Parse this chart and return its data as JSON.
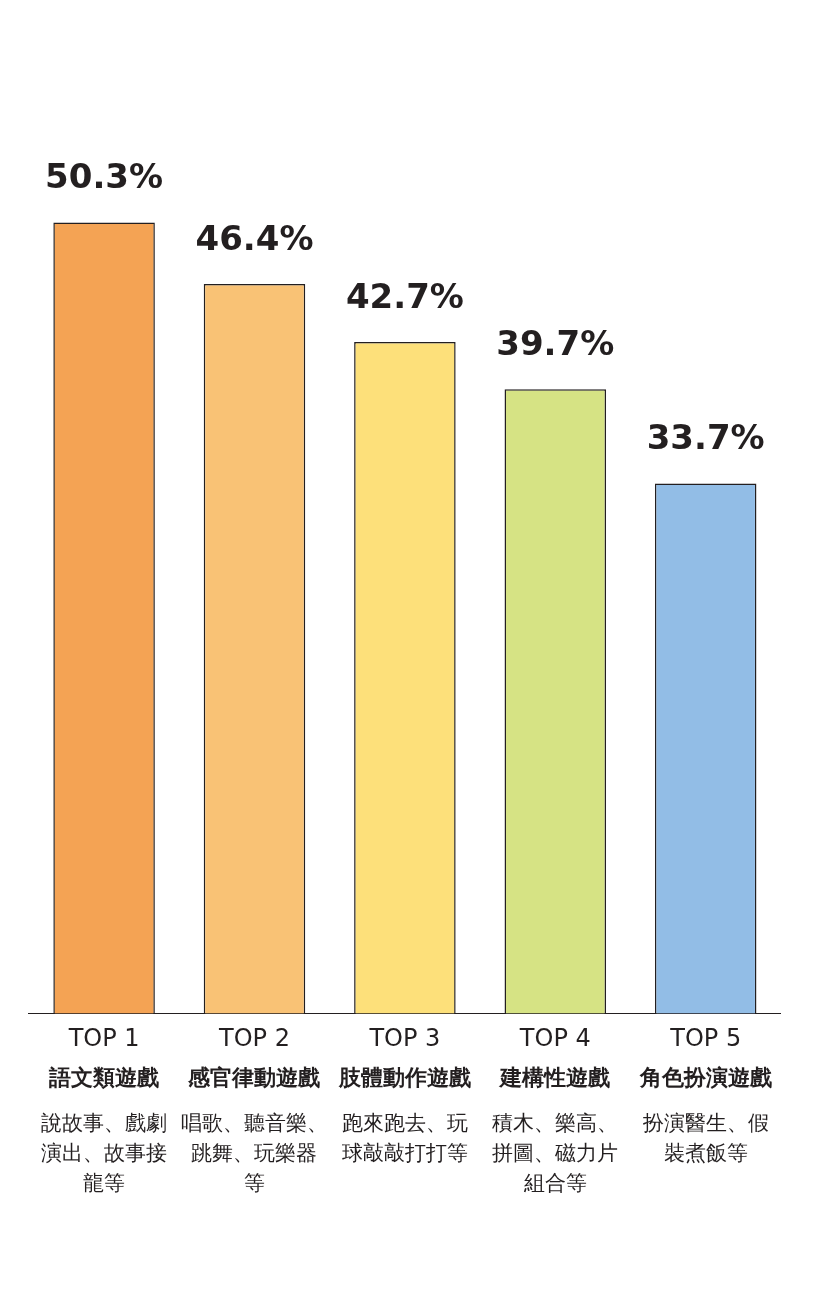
{
  "chart_data": {
    "type": "bar",
    "categories": [
      "語文類遊戲",
      "感官律動遊戲",
      "肢體動作遊戲",
      "建構性遊戲",
      "角色扮演遊戲"
    ],
    "values": [
      50.3,
      46.4,
      42.7,
      39.7,
      33.7
    ],
    "colors": [
      "#f4a354",
      "#f9c275",
      "#fde07a",
      "#d6e384",
      "#92bde6"
    ],
    "value_labels": [
      "50.3%",
      "46.4%",
      "42.7%",
      "39.7%",
      "33.7%"
    ],
    "annotations": [
      "TOP 1",
      "說故事、戲劇演出、故事接龍等",
      "TOP 2",
      "唱歌、聽音樂、跳舞、玩樂器等",
      "TOP 3",
      "跑來跑去、玩球敲敲打打等",
      "TOP 4",
      "積木、樂高、拼圖、磁力片組合等",
      "TOP 5",
      "扮演醫生、假裝煮飯等"
    ],
    "legend": false,
    "grid": false
  }
}
